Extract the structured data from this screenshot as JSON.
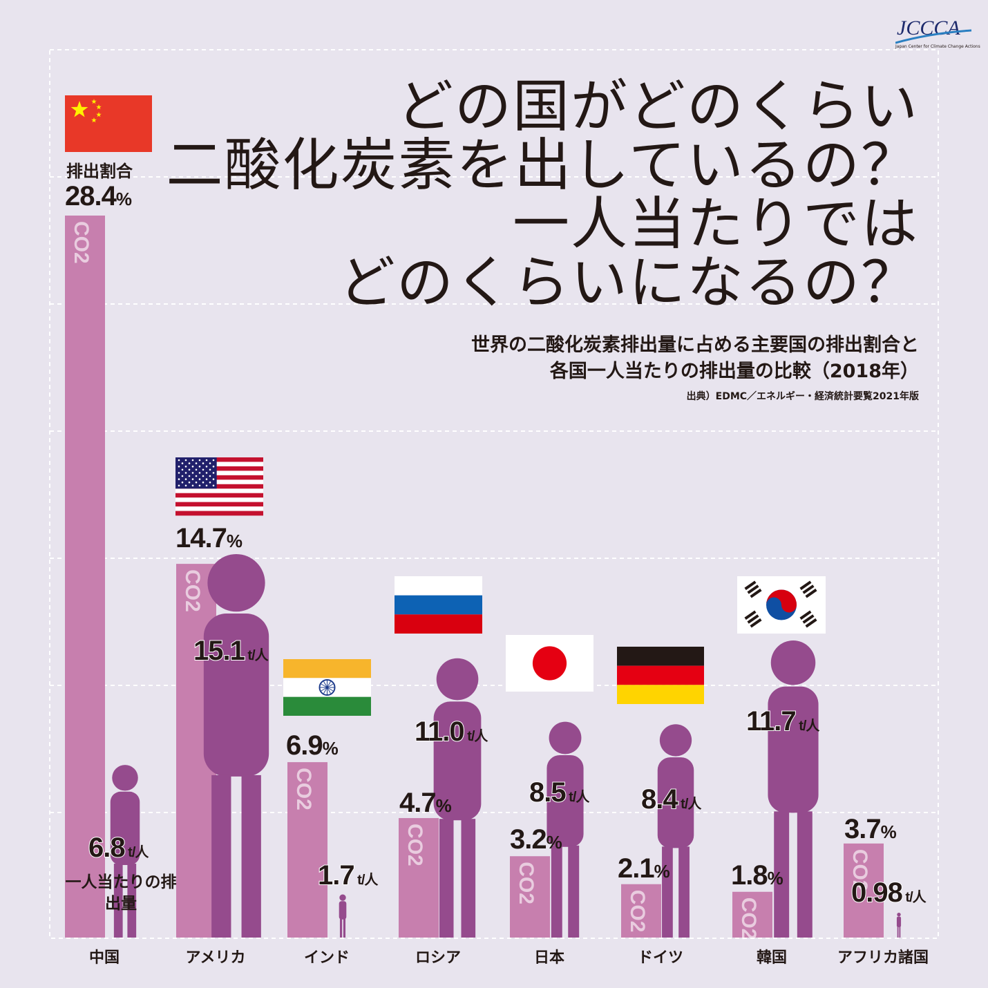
{
  "header": {
    "title_lines": [
      "どの国がどのくらい",
      "二酸化炭素を出しているの？",
      "一人当たりでは",
      "どのくらいになるの？"
    ],
    "subtitle_lines": [
      "世界の二酸化炭素排出量に占める主要国の排出割合と",
      "各国一人当たりの排出量の比較（2018年）"
    ],
    "source": "出典）EDMC／エネルギー・経済統計要覧2021年版",
    "logo_text": "JCCCA",
    "logo_caption": "Japan Center for Climate Change Actions"
  },
  "labels": {
    "share_label": "排出割合",
    "percapita_label": "一人当たりの排出量",
    "bar_mark": "CO2",
    "pct_unit": "%",
    "pc_unit_t": "t",
    "pc_unit_person": "人"
  },
  "colors": {
    "background": "#e8e4ee",
    "share_bar": "#c77fae",
    "person": "#954b8d",
    "grid": "#ffffff"
  },
  "chart_data": {
    "type": "bar",
    "categories": [
      "中国",
      "アメリカ",
      "インド",
      "ロシア",
      "日本",
      "ドイツ",
      "韓国",
      "アフリカ諸国"
    ],
    "series": [
      {
        "name": "排出割合",
        "values": [
          28.4,
          14.7,
          6.9,
          4.7,
          3.2,
          2.1,
          1.8,
          3.7
        ]
      },
      {
        "name": "一人当たりの排出量",
        "values": [
          6.8,
          15.1,
          1.7,
          11.0,
          8.5,
          8.4,
          11.7,
          0.98
        ]
      }
    ],
    "share_display": [
      "28.4",
      "14.7",
      "6.9",
      "4.7",
      "3.2",
      "2.1",
      "1.8",
      "3.7"
    ],
    "percapita_display": [
      "6.8",
      "15.1",
      "1.7",
      "11.0",
      "8.5",
      "8.4",
      "11.7",
      "0.98"
    ],
    "flags": [
      "china-flag",
      "usa-flag",
      "india-flag",
      "russia-flag",
      "japan-flag",
      "germany-flag",
      "korea-flag",
      ""
    ],
    "title": "どの国がどのくらい二酸化炭素を出しているの？一人当たりではどのくらいになるの？",
    "grid": true
  }
}
